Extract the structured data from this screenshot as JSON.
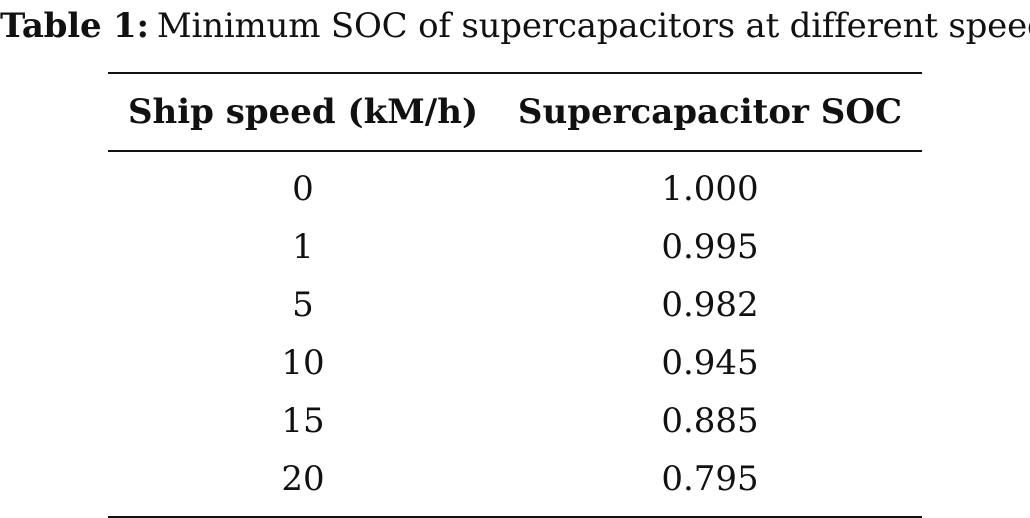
{
  "caption": {
    "label": "Table 1:",
    "text": "Minimum SOC of supercapacitors at different speeds"
  },
  "table": {
    "headers": [
      "Ship speed (kM/h)",
      "Supercapacitor SOC"
    ],
    "rows": [
      [
        "0",
        "1.000"
      ],
      [
        "1",
        "0.995"
      ],
      [
        "5",
        "0.982"
      ],
      [
        "10",
        "0.945"
      ],
      [
        "15",
        "0.885"
      ],
      [
        "20",
        "0.795"
      ]
    ]
  }
}
